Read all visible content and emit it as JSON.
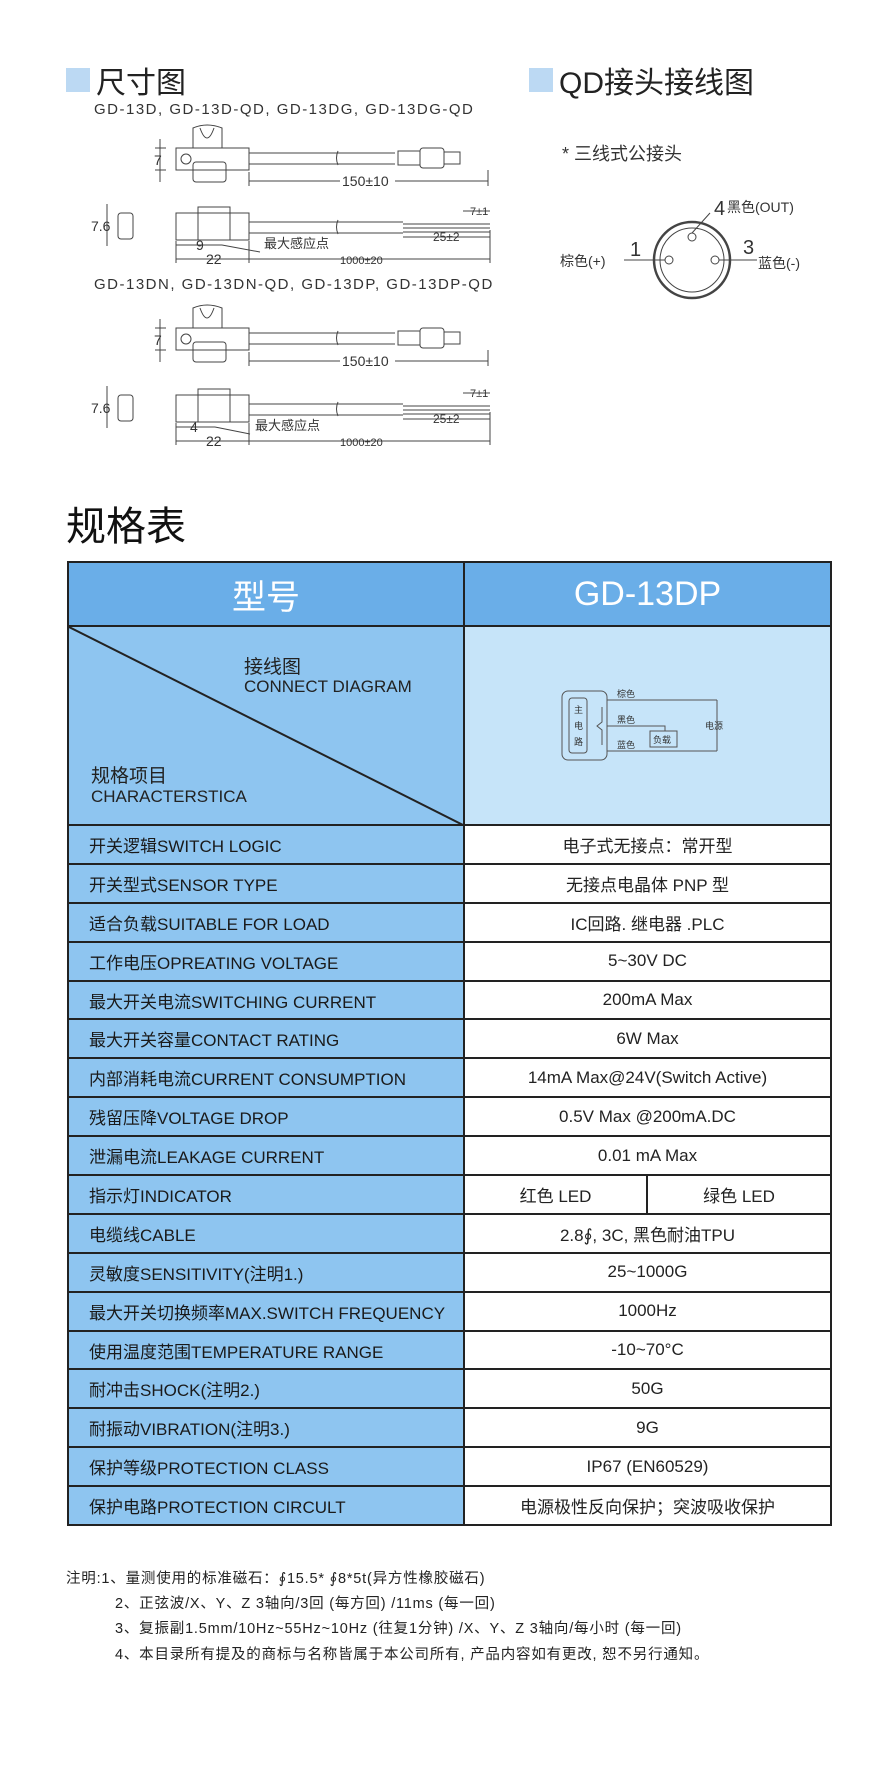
{
  "dimension_section": {
    "title": "尺寸图",
    "group1_models": "GD-13D, GD-13D-QD, GD-13DG, GD-13DG-QD",
    "group2_models": "GD-13DN, GD-13DN-QD, GD-13DP, GD-13DP-QD",
    "dim_height": "7",
    "dim_thickness": "7.6",
    "dim_qd_cable": "150±10",
    "dim_strip": "7±1",
    "dim_wire": "25±2",
    "dim_sense_g1": "9",
    "dim_sense_g2": "4",
    "sense_point_label": "最大感应点",
    "dim_body": "22",
    "dim_cable": "1000±20"
  },
  "qd_section": {
    "title": "QD接头接线图",
    "subtitle": "* 三线式公接头",
    "pin4": "4",
    "pin4_label": "黑色(OUT)",
    "pin1": "1",
    "pin1_label": "棕色(+)",
    "pin3": "3",
    "pin3_label": "蓝色(-)"
  },
  "spec": {
    "title": "规格表",
    "header_left": "型号",
    "header_right": "GD-13DP",
    "diag_top_cn": "接线图",
    "diag_top_en": "CONNECT DIAGRAM",
    "diag_bottom_cn": "规格项目",
    "diag_bottom_en": "CHARACTERSTICA",
    "circuit": {
      "main": [
        "主",
        "电",
        "路"
      ],
      "brown": "棕色",
      "black": "黑色",
      "blue": "蓝色",
      "load": "负载",
      "power": "电源"
    },
    "rows": [
      {
        "label": "开关逻辑SWITCH LOGIC",
        "value": "电子式无接点：常开型"
      },
      {
        "label": "开关型式SENSOR TYPE",
        "value": "无接点电晶体 PNP 型"
      },
      {
        "label": "适合负载SUITABLE FOR LOAD",
        "value": "IC回路. 继电器 .PLC"
      },
      {
        "label": "工作电压OPREATING VOLTAGE",
        "value": "5~30V DC"
      },
      {
        "label": "最大开关电流SWITCHING CURRENT",
        "value": "200mA Max"
      },
      {
        "label": "最大开关容量CONTACT RATING",
        "value": "6W Max"
      },
      {
        "label": "内部消耗电流CURRENT CONSUMPTION",
        "value": "14mA Max@24V(Switch Active)"
      },
      {
        "label": "残留压降VOLTAGE DROP",
        "value": "0.5V Max @200mA.DC"
      },
      {
        "label": "泄漏电流LEAKAGE CURRENT",
        "value": "0.01 mA Max"
      },
      {
        "label": "指示灯INDICATOR",
        "value": "红色 LED",
        "value2": "绿色 LED"
      },
      {
        "label": "电缆线CABLE",
        "value": "2.8∮, 3C, 黑色耐油TPU"
      },
      {
        "label": "灵敏度SENSITIVITY(注明1.)",
        "value": "25~1000G"
      },
      {
        "label": "最大开关切换频率MAX.SWITCH FREQUENCY",
        "value": "1000Hz"
      },
      {
        "label": "使用温度范围TEMPERATURE RANGE",
        "value": "-10~70°C"
      },
      {
        "label": "耐冲击SHOCK(注明2.)",
        "value": "50G"
      },
      {
        "label": "耐振动VIBRATION(注明3.)",
        "value": "9G"
      },
      {
        "label": "保护等级PROTECTION CLASS",
        "value": "IP67 (EN60529)"
      },
      {
        "label": "保护电路PROTECTION CIRCULT",
        "value": "电源极性反向保护；突波吸收保护"
      }
    ]
  },
  "notes": [
    "注明:1、量测使用的标准磁石：∮15.5* ∮8*5t(异方性橡胶磁石)",
    "2、正弦波/X、Y、Z 3轴向/3回 (每方回) /11ms (每一回)",
    "3、复振副1.5mm/10Hz~55Hz~10Hz (往复1分钟) /X、Y、Z 3轴向/每小时 (每一回)",
    "4、本目录所有提及的商标与名称皆属于本公司所有, 产品内容如有更改, 恕不另行通知。"
  ]
}
